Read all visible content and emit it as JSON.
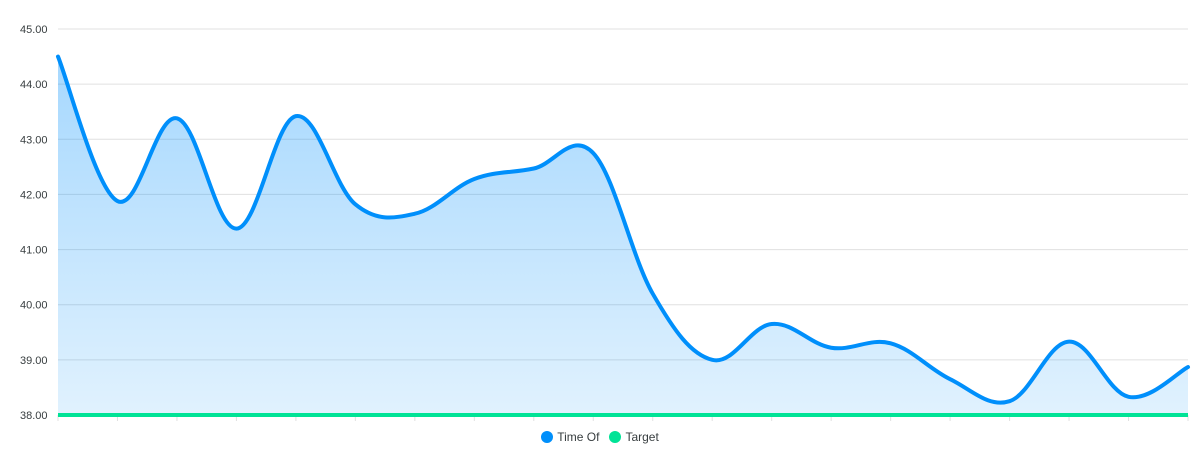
{
  "chart_data": {
    "type": "area",
    "title": "",
    "xlabel": "",
    "ylabel": "",
    "ylim": [
      38,
      45
    ],
    "yticks": [
      "38.00",
      "39.00",
      "40.00",
      "41.00",
      "42.00",
      "43.00",
      "44.00",
      "45.00"
    ],
    "grid": true,
    "legend_position": "bottom-center",
    "x": [
      1,
      2,
      3,
      4,
      5,
      6,
      7,
      8,
      9,
      10,
      11,
      12,
      13,
      14,
      15,
      16,
      17,
      18,
      19,
      20
    ],
    "series": [
      {
        "name": "Time Of",
        "color": "#008ffb",
        "values": [
          44.5,
          41.88,
          43.38,
          41.38,
          43.42,
          41.82,
          41.65,
          42.28,
          42.47,
          42.75,
          40.2,
          39.0,
          39.65,
          39.22,
          39.3,
          38.65,
          38.25,
          39.33,
          38.33,
          38.87
        ]
      },
      {
        "name": "Target",
        "color": "#00e396",
        "values": [
          38,
          38,
          38,
          38,
          38,
          38,
          38,
          38,
          38,
          38,
          38,
          38,
          38,
          38,
          38,
          38,
          38,
          38,
          38,
          38
        ]
      }
    ]
  }
}
